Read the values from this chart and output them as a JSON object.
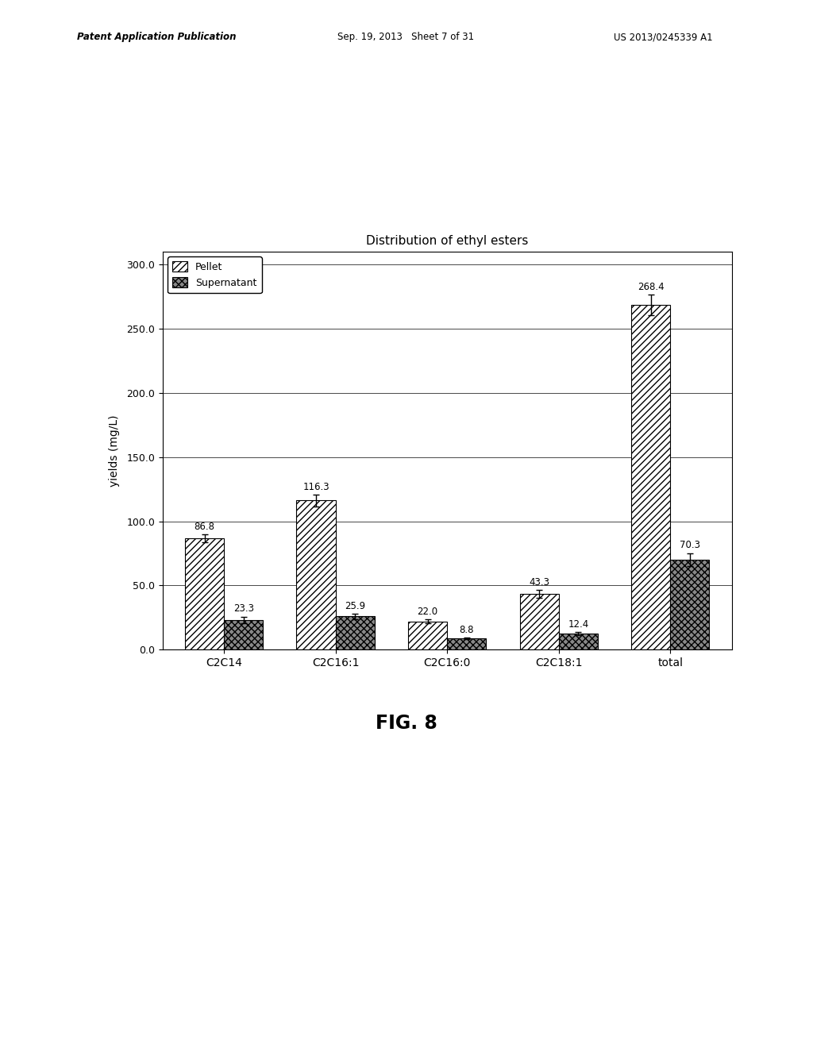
{
  "title": "Distribution of ethyl esters",
  "ylabel": "yields (mg/L)",
  "categories": [
    "C2C14",
    "C2C16:1",
    "C2C16:0",
    "C2C18:1",
    "total"
  ],
  "pellet_values": [
    86.8,
    116.3,
    22.0,
    43.3,
    268.4
  ],
  "supernatant_values": [
    23.3,
    25.9,
    8.8,
    12.4,
    70.3
  ],
  "pellet_errors": [
    3.0,
    4.5,
    1.5,
    3.0,
    8.0
  ],
  "supernatant_errors": [
    2.5,
    2.0,
    0.8,
    1.2,
    5.0
  ],
  "ylim": [
    0,
    310
  ],
  "yticks": [
    0.0,
    50.0,
    100.0,
    150.0,
    200.0,
    250.0,
    300.0
  ],
  "bar_width": 0.35,
  "fig_caption": "FIG. 8",
  "background_color": "#ffffff",
  "pellet_hatch": "////",
  "supernatant_hatch": "xxxx",
  "legend_labels": [
    "Pellet",
    "Supernatant"
  ],
  "header_left": "Patent Application Publication",
  "header_mid": "Sep. 19, 2013   Sheet 7 of 31",
  "header_right": "US 2013/0245339 A1"
}
